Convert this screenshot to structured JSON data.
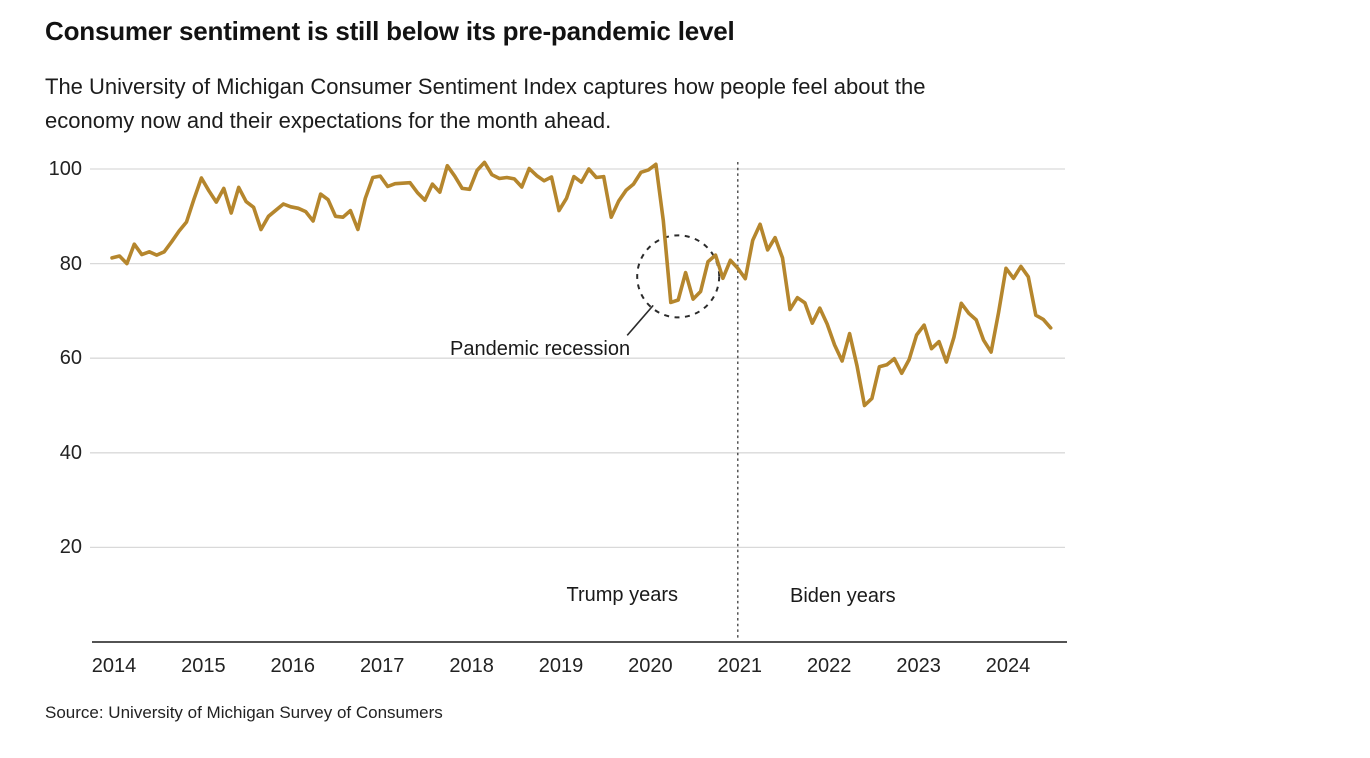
{
  "header": {
    "title": "Consumer sentiment is still below its pre-pandemic level",
    "subtitle": "The University of Michigan Consumer Sentiment Index captures how people feel about the economy now and their expectations for the month ahead."
  },
  "chart_data": {
    "type": "line",
    "title": "Consumer sentiment is still below its pre-pandemic level",
    "xlabel": "",
    "ylabel": "",
    "ylim": [
      0,
      105
    ],
    "grid": "horizontal",
    "y_ticks": [
      20,
      40,
      60,
      80,
      100
    ],
    "x_ticks": [
      "2014",
      "2015",
      "2016",
      "2017",
      "2018",
      "2019",
      "2020",
      "2021",
      "2022",
      "2023",
      "2024"
    ],
    "x_start": "2014-01",
    "x_end": "2024-07",
    "series": [
      {
        "name": "University of Michigan Consumer Sentiment Index",
        "frequency": "monthly",
        "values": [
          81.2,
          81.6,
          80.0,
          84.1,
          81.9,
          82.5,
          81.8,
          82.5,
          84.6,
          86.9,
          88.8,
          93.6,
          98.1,
          95.4,
          93.0,
          95.9,
          90.7,
          96.1,
          93.1,
          91.9,
          87.2,
          90.0,
          91.3,
          92.6,
          92.0,
          91.7,
          91.0,
          89.0,
          94.7,
          93.5,
          90.0,
          89.8,
          91.2,
          87.2,
          93.8,
          98.2,
          98.5,
          96.3,
          96.9,
          97.0,
          97.1,
          95.0,
          93.4,
          96.8,
          95.1,
          100.7,
          98.5,
          95.9,
          95.7,
          99.7,
          101.4,
          98.8,
          98.0,
          98.2,
          97.9,
          96.2,
          100.1,
          98.6,
          97.5,
          98.3,
          91.2,
          93.8,
          98.4,
          97.2,
          100.0,
          98.2,
          98.4,
          89.8,
          93.2,
          95.5,
          96.8,
          99.3,
          99.8,
          101.0,
          89.1,
          71.8,
          72.3,
          78.1,
          72.5,
          74.1,
          80.4,
          81.8,
          76.9,
          80.7,
          79.0,
          76.8,
          84.9,
          88.3,
          82.9,
          85.5,
          81.2,
          70.3,
          72.8,
          71.7,
          67.4,
          70.6,
          67.2,
          62.8,
          59.4,
          65.2,
          58.4,
          50.0,
          51.5,
          58.2,
          58.6,
          59.9,
          56.8,
          59.7,
          64.9,
          67.0,
          62.0,
          63.5,
          59.2,
          64.4,
          71.6,
          69.5,
          68.1,
          63.8,
          61.3,
          69.7,
          79.0,
          76.9,
          79.4,
          77.2,
          69.1,
          68.2,
          66.4
        ]
      }
    ],
    "annotations": {
      "pandemic_recession": {
        "label": "Pandemic recession",
        "circle_center_month": "2020-05",
        "circle_center_value": 77.3
      },
      "president_divider": {
        "position": "2021-01",
        "left_label": "Trump years",
        "right_label": "Biden years"
      }
    },
    "colors": {
      "line": "#b5862d",
      "gridline": "#d9d9d9",
      "axis": "#1a1a1a",
      "annotation": "#2b2b2b",
      "text": "#222222"
    }
  },
  "footer": {
    "source": "Source: University of Michigan Survey of Consumers"
  }
}
